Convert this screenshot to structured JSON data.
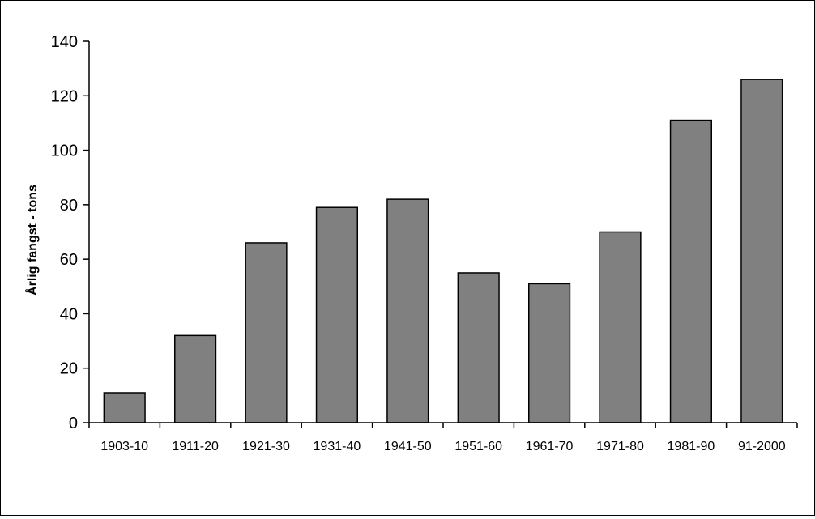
{
  "chart_data": {
    "type": "bar",
    "title": "",
    "xlabel": "",
    "ylabel": "Årlig fangst - tons",
    "categories": [
      "1903-10",
      "1911-20",
      "1921-30",
      "1931-40",
      "1941-50",
      "1951-60",
      "1961-70",
      "1971-80",
      "1981-90",
      "91-2000"
    ],
    "values": [
      11,
      32,
      66,
      79,
      82,
      55,
      51,
      70,
      111,
      126
    ],
    "ylim": [
      0,
      140
    ],
    "yticks": [
      0,
      20,
      40,
      60,
      80,
      100,
      120,
      140
    ],
    "grid": false,
    "legend": "none",
    "bar_color": "#808080",
    "bar_edge_color": "#000000"
  }
}
